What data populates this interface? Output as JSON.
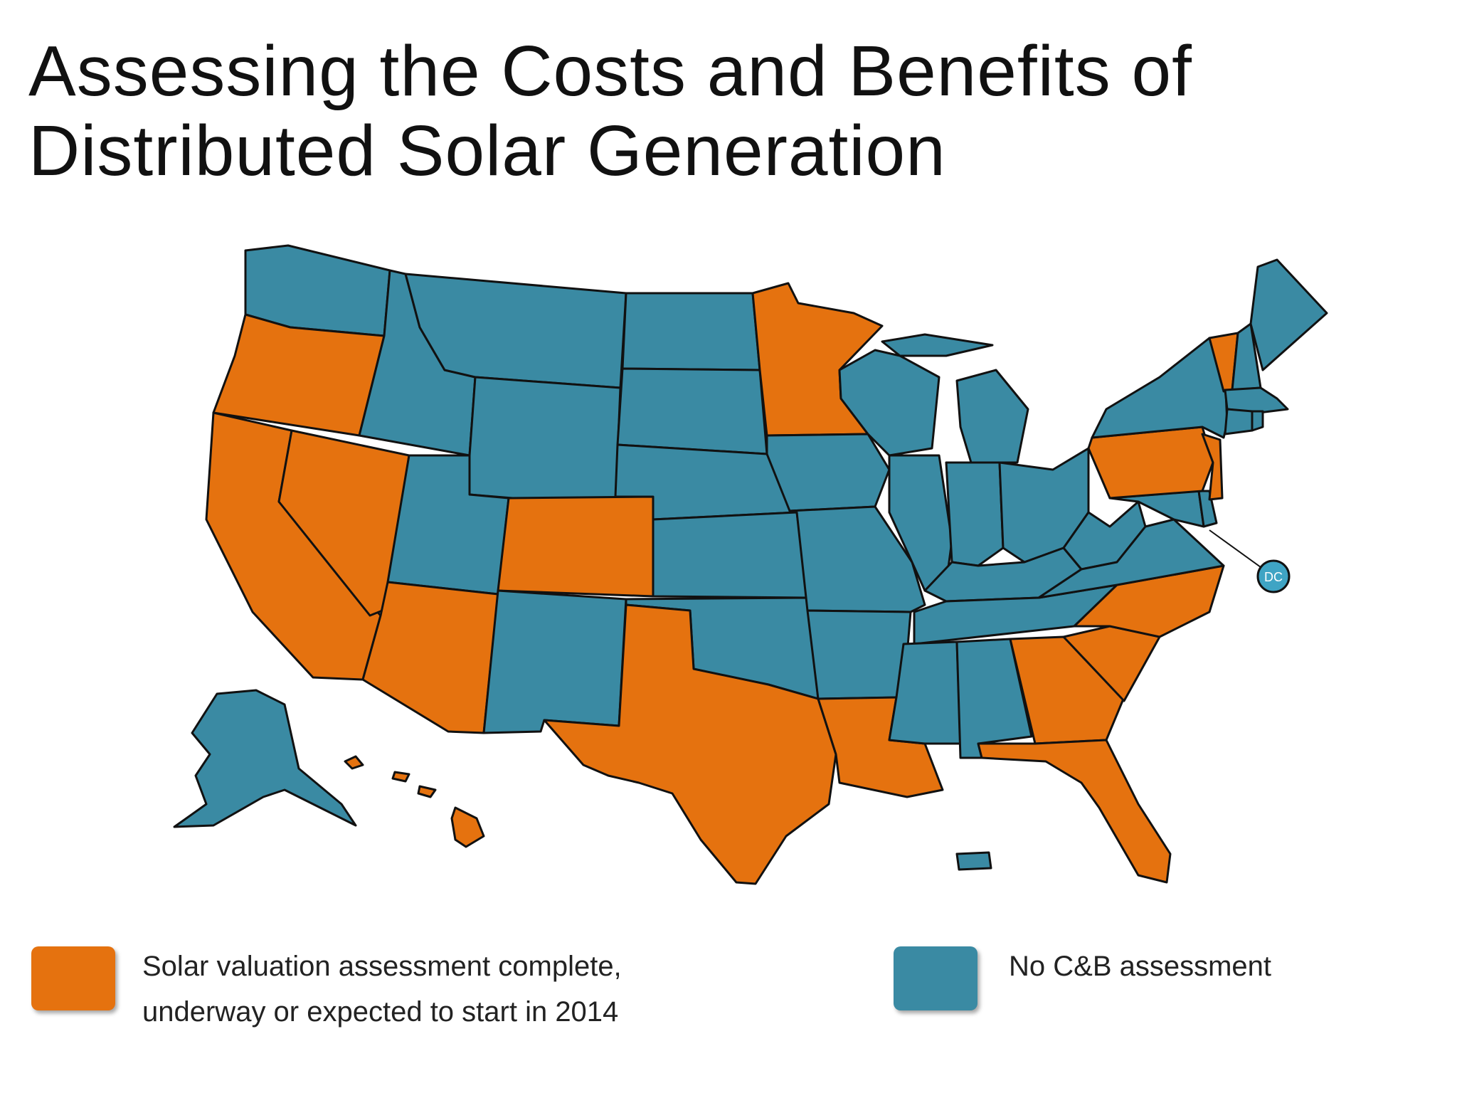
{
  "title": {
    "line1": "Assessing the Costs and Benefits of",
    "line2": "Distributed Solar Generation"
  },
  "colors": {
    "assessed": "#e5720f",
    "not_assessed": "#3a8aa3",
    "outline": "#111111",
    "dc_marker": "#3fa4c4"
  },
  "map": {
    "dc_label": "DC",
    "assessed_states": [
      "OR",
      "CA",
      "NV",
      "AZ",
      "CO",
      "TX",
      "MN",
      "LA",
      "GA",
      "SC",
      "NC",
      "FL",
      "PA",
      "NJ",
      "VT",
      "HI"
    ],
    "other_states": [
      "WA",
      "ID",
      "MT",
      "WY",
      "UT",
      "NM",
      "ND",
      "SD",
      "NE",
      "KS",
      "OK",
      "IA",
      "MO",
      "AR",
      "WI",
      "IL",
      "MI",
      "IN",
      "OH",
      "KY",
      "TN",
      "MS",
      "AL",
      "WV",
      "VA",
      "MD",
      "DE",
      "NY",
      "ME",
      "NH",
      "MA",
      "CT",
      "RI",
      "AK",
      "PR",
      "DC"
    ]
  },
  "legend": {
    "item1_line1": "Solar valuation assessment complete,",
    "item1_line2": "underway or expected to start in 2014",
    "item2": "No C&B assessment"
  }
}
